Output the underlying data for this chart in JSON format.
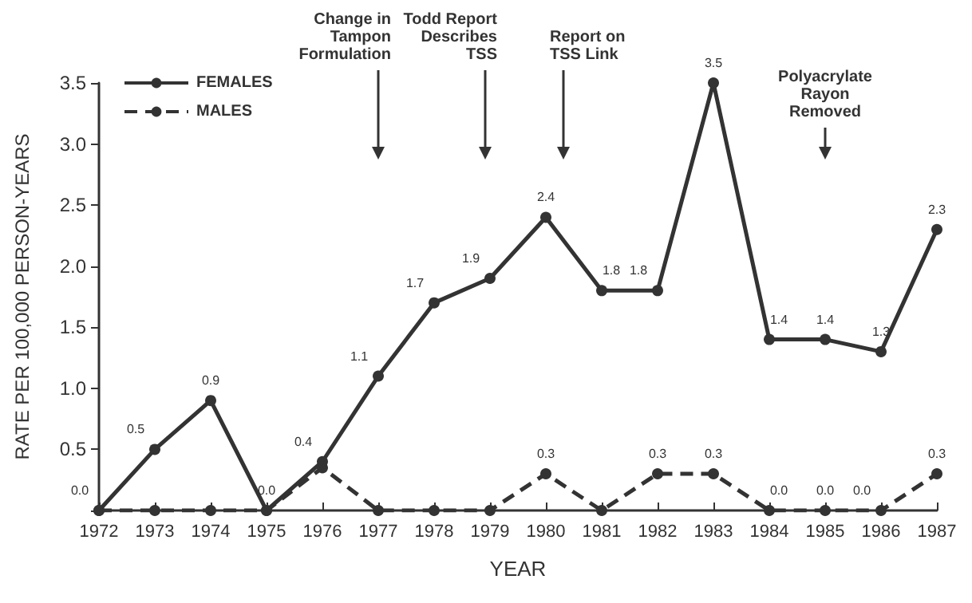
{
  "chart_data": {
    "type": "line",
    "xlabel": "YEAR",
    "ylabel": "RATE PER 100,000 PERSON-YEARS",
    "x": [
      1972,
      1973,
      1974,
      1975,
      1976,
      1977,
      1978,
      1979,
      1980,
      1981,
      1982,
      1983,
      1984,
      1985,
      1986,
      1987
    ],
    "series": [
      {
        "name": "FEMALES",
        "color": "#333333",
        "line_style": "solid",
        "values": [
          0.0,
          0.5,
          0.9,
          0.0,
          0.4,
          1.1,
          1.7,
          1.9,
          2.4,
          1.8,
          1.8,
          3.5,
          1.4,
          1.4,
          1.3,
          2.3
        ],
        "value_labels": [
          "0.0",
          "0.5",
          "0.9",
          "0.0",
          "0.4",
          "1.1",
          "1.7",
          "1.9",
          "2.4",
          "1.8",
          "1.8",
          "3.5",
          "1.4",
          "1.4",
          "1.3",
          "2.3"
        ]
      },
      {
        "name": "MALES",
        "color": "#333333",
        "line_style": "dashed",
        "values": [
          0.0,
          0.0,
          0.0,
          0.0,
          0.35,
          0.0,
          0.0,
          0.0,
          0.3,
          0.0,
          0.3,
          0.3,
          0.0,
          0.0,
          0.0,
          0.3
        ],
        "value_labels": [
          null,
          null,
          null,
          null,
          null,
          null,
          null,
          null,
          "0.3",
          null,
          "0.3",
          "0.3",
          "0.0",
          "0.0",
          "0.0",
          "0.3"
        ]
      }
    ],
    "marker": "circle",
    "xlim": [
      1972,
      1987
    ],
    "xticks": [
      1972,
      1973,
      1974,
      1975,
      1976,
      1977,
      1978,
      1979,
      1980,
      1981,
      1982,
      1983,
      1984,
      1985,
      1986,
      1987
    ],
    "ylim": [
      0,
      3.5
    ],
    "yticks": [
      {
        "value": 0,
        "label": null
      },
      0.5,
      {
        "value": 1,
        "label": "1.0"
      },
      1.5,
      {
        "value": 2,
        "label": "2.0"
      },
      2.5,
      {
        "value": 3,
        "label": "3.0"
      },
      3.5
    ],
    "grid": false,
    "legend": "top left",
    "ref_lines": [
      {
        "axis": "x",
        "value": 1977,
        "label": "Change in Tampon Formulation"
      },
      {
        "axis": "x",
        "value": 1978.9,
        "label": "Todd Report Describes TSS"
      },
      {
        "axis": "x",
        "value": 1980.3,
        "label": "Report on TSS Link"
      },
      {
        "axis": "x",
        "value": 1985,
        "label": "Polyacrylate Rayon Removed"
      }
    ]
  }
}
